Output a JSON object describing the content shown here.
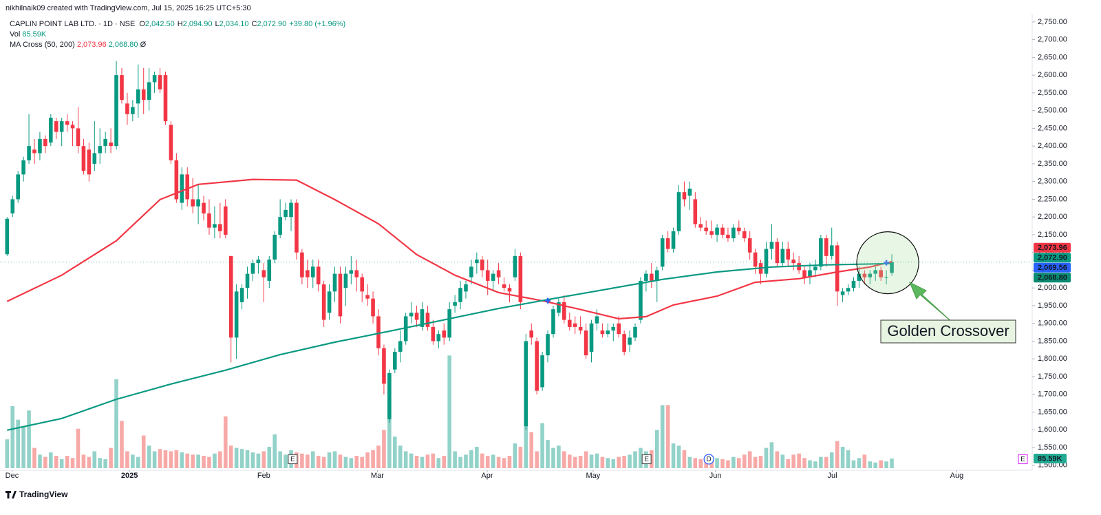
{
  "chart_data": {
    "type": "candlestick",
    "header": "nikhilnaik09 created with TradingView.com, Jul 15, 2025 16:25 UTC+5:30",
    "legend": {
      "symbol": "CAPLIN POINT LAB LTD. · 1D · NSE",
      "ohlc": [
        {
          "key": "O",
          "value": "2,042.50"
        },
        {
          "key": "H",
          "value": "2,094.90"
        },
        {
          "key": "L",
          "value": "2,034.10"
        },
        {
          "key": "C",
          "value": "2,072.90"
        }
      ],
      "change": "+39.80 (+1.96%)",
      "vol_label": "Vol",
      "vol_value": "85.59K",
      "ma_label": "MA Cross (50, 200)",
      "ma_values": [
        "2,073.96",
        "2,068.80"
      ],
      "ma_extra": "Ø"
    },
    "up_color": "#089981",
    "down_color": "#f23645",
    "up_volume_color": "#92d2c9",
    "down_volume_color": "#f7a9a7",
    "open": [
      2095,
      2210,
      2250,
      2320,
      2360,
      2390,
      2380,
      2420,
      2410,
      2470,
      2440,
      2470,
      2460,
      2450,
      2400,
      2390,
      2350,
      2380,
      2400,
      2410,
      2400,
      2600,
      2520,
      2490,
      2520,
      2560,
      2530,
      2580,
      2600,
      2600,
      2460,
      2360,
      2240,
      2320,
      2250,
      2230,
      2240,
      2210,
      2170,
      2180,
      2230,
      2090,
      1860,
      1960,
      2000,
      2040,
      2070,
      2050,
      2020,
      2080,
      2150,
      2200,
      2200,
      2240,
      2100,
      2050,
      2030,
      2060,
      2010,
      1930,
      1990,
      2040,
      2000,
      2040,
      2050,
      2030,
      1980,
      1970,
      1920,
      1830,
      1630,
      1770,
      1820,
      1850,
      1920,
      1930,
      1890,
      1930,
      1890,
      1850,
      1880,
      1860,
      1950,
      1960,
      1990,
      2030,
      2070,
      2080,
      2050,
      2020,
      2050,
      2010,
      2000,
      2030,
      2090,
      1610,
      1880,
      1850,
      1720,
      1810,
      1870,
      1930,
      1960,
      1910,
      1900,
      1890,
      1880,
      1820,
      1900,
      1880,
      1870,
      1880,
      1900,
      1870,
      1840,
      1860,
      1910,
      2020,
      2040,
      2020,
      2060,
      2140,
      2110,
      2160,
      2270,
      2260,
      2250,
      2180,
      2170,
      2160,
      2150,
      2170,
      2150,
      2140,
      2170,
      2160,
      2140,
      2100,
      2070,
      2040,
      2110,
      2130,
      2070,
      2110,
      2080,
      2070,
      2050,
      2030,
      2050,
      2060,
      2140,
      2090,
      2120,
      1980,
      1990,
      2000,
      2020,
      2040,
      2030,
      2040,
      2050,
      2030,
      2042.5
    ],
    "high": [
      2200,
      2260,
      2330,
      2370,
      2490,
      2420,
      2440,
      2430,
      2490,
      2480,
      2480,
      2490,
      2470,
      2510,
      2420,
      2410,
      2470,
      2450,
      2440,
      2450,
      2640,
      2620,
      2550,
      2530,
      2630,
      2620,
      2620,
      2610,
      2620,
      2610,
      2470,
      2380,
      2340,
      2340,
      2310,
      2290,
      2260,
      2250,
      2230,
      2240,
      2250,
      2090,
      2010,
      2010,
      2060,
      2080,
      2090,
      2070,
      2090,
      2160,
      2250,
      2240,
      2250,
      2250,
      2110,
      2080,
      2080,
      2080,
      2020,
      2010,
      2060,
      2060,
      2060,
      2090,
      2080,
      2040,
      2010,
      1990,
      1940,
      1840,
      1770,
      1830,
      1880,
      1930,
      1960,
      1950,
      1960,
      1950,
      1910,
      1880,
      1900,
      1960,
      1980,
      2020,
      2020,
      2080,
      2100,
      2090,
      2080,
      2050,
      2070,
      2030,
      2010,
      2110,
      2100,
      1870,
      1900,
      1860,
      1820,
      1880,
      1950,
      1970,
      1980,
      1930,
      1920,
      1920,
      1900,
      1910,
      1940,
      1900,
      1900,
      1900,
      1920,
      1880,
      1880,
      1900,
      2030,
      2050,
      2070,
      2060,
      2150,
      2160,
      2170,
      2290,
      2300,
      2300,
      2270,
      2200,
      2190,
      2190,
      2180,
      2180,
      2170,
      2180,
      2190,
      2170,
      2160,
      2110,
      2080,
      2130,
      2180,
      2140,
      2130,
      2130,
      2100,
      2090,
      2060,
      2070,
      2080,
      2150,
      2150,
      2170,
      2130,
      2000,
      2010,
      2030,
      2060,
      2050,
      2050,
      2060,
      2060,
      2050,
      2094.9
    ],
    "low": [
      2090,
      2200,
      2240,
      2300,
      2350,
      2350,
      2360,
      2380,
      2400,
      2420,
      2400,
      2440,
      2400,
      2380,
      2320,
      2300,
      2330,
      2350,
      2380,
      2380,
      2390,
      2520,
      2460,
      2470,
      2480,
      2490,
      2500,
      2550,
      2550,
      2460,
      2350,
      2240,
      2220,
      2230,
      2210,
      2180,
      2190,
      2150,
      2140,
      2140,
      2140,
      1790,
      1800,
      1940,
      1970,
      2020,
      2040,
      1960,
      2000,
      2070,
      2140,
      2190,
      2160,
      2080,
      2010,
      2000,
      2000,
      1990,
      1890,
      1910,
      1960,
      1900,
      1950,
      2010,
      1990,
      1960,
      1950,
      1900,
      1810,
      1700,
      1620,
      1760,
      1790,
      1840,
      1900,
      1890,
      1880,
      1880,
      1840,
      1830,
      1840,
      1850,
      1930,
      1940,
      1970,
      2010,
      2040,
      2030,
      1980,
      1990,
      2010,
      1990,
      1960,
      2020,
      1940,
      1600,
      1840,
      1700,
      1710,
      1790,
      1860,
      1920,
      1900,
      1880,
      1870,
      1870,
      1800,
      1790,
      1880,
      1860,
      1860,
      1850,
      1860,
      1810,
      1820,
      1850,
      1900,
      1990,
      2000,
      1960,
      2050,
      2100,
      2100,
      2150,
      2230,
      2220,
      2170,
      2160,
      2150,
      2140,
      2130,
      2140,
      2130,
      2130,
      2150,
      2130,
      2080,
      2040,
      2010,
      2030,
      2080,
      2060,
      2060,
      2060,
      2050,
      2040,
      2010,
      2010,
      2030,
      2050,
      2060,
      2080,
      1950,
      1960,
      1980,
      1990,
      2000,
      2010,
      2010,
      2020,
      2020,
      2010,
      2034.1
    ],
    "close": [
      2195,
      2250,
      2320,
      2360,
      2400,
      2380,
      2420,
      2400,
      2480,
      2440,
      2470,
      2460,
      2450,
      2400,
      2330,
      2320,
      2380,
      2400,
      2420,
      2400,
      2600,
      2530,
      2490,
      2510,
      2560,
      2530,
      2580,
      2600,
      2560,
      2470,
      2360,
      2250,
      2320,
      2250,
      2230,
      2250,
      2210,
      2170,
      2180,
      2160,
      2150,
      1860,
      1990,
      2000,
      2040,
      2070,
      2080,
      2030,
      2080,
      2150,
      2200,
      2220,
      2240,
      2100,
      2030,
      2030,
      2060,
      2010,
      1910,
      1990,
      2040,
      1920,
      2040,
      2050,
      2030,
      1990,
      1970,
      1920,
      1830,
      1730,
      1760,
      1820,
      1850,
      1920,
      1930,
      1910,
      1940,
      1890,
      1850,
      1870,
      1860,
      1940,
      1960,
      2000,
      2010,
      2060,
      2080,
      2050,
      2020,
      2040,
      2030,
      2000,
      1990,
      2090,
      1960,
      1850,
      1860,
      1710,
      1810,
      1870,
      1940,
      1960,
      1910,
      1890,
      1890,
      1880,
      1810,
      1900,
      1920,
      1870,
      1880,
      1890,
      1870,
      1820,
      1860,
      1890,
      2020,
      2040,
      2020,
      2050,
      2140,
      2110,
      2160,
      2270,
      2250,
      2280,
      2180,
      2170,
      2160,
      2150,
      2170,
      2150,
      2140,
      2170,
      2160,
      2140,
      2100,
      2060,
      2040,
      2110,
      2130,
      2070,
      2110,
      2080,
      2070,
      2050,
      2030,
      2050,
      2060,
      2140,
      2090,
      2120,
      1990,
      1990,
      2000,
      2020,
      2040,
      2030,
      2040,
      2050,
      2030,
      2030,
      2072.9
    ],
    "volume": [
      256,
      550,
      430,
      366,
      512,
      180,
      120,
      100,
      140,
      110,
      80,
      110,
      90,
      350,
      120,
      100,
      150,
      90,
      80,
      180,
      790,
      420,
      150,
      120,
      100,
      290,
      200,
      150,
      170,
      160,
      150,
      160,
      140,
      130,
      120,
      120,
      110,
      100,
      130,
      150,
      460,
      200,
      180,
      170,
      160,
      140,
      130,
      150,
      190,
      300,
      150,
      120,
      160,
      140,
      130,
      120,
      150,
      110,
      100,
      140,
      150,
      120,
      100,
      90,
      110,
      100,
      140,
      160,
      200,
      340,
      440,
      280,
      200,
      150,
      130,
      110,
      100,
      120,
      130,
      90,
      110,
      1000,
      150,
      100,
      120,
      160,
      190,
      130,
      110,
      120,
      100,
      90,
      110,
      220,
      190,
      410,
      320,
      150,
      400,
      250,
      180,
      200,
      150,
      120,
      100,
      110,
      150,
      120,
      130,
      100,
      90,
      80,
      100,
      110,
      120,
      150,
      180,
      150,
      160,
      340,
      560,
      560,
      220,
      200,
      160,
      100,
      90,
      80,
      70,
      100,
      90,
      80,
      70,
      100,
      90,
      120,
      150,
      100,
      110,
      180,
      230,
      150,
      120,
      80,
      120,
      130,
      90,
      70,
      60,
      100,
      100,
      140,
      240,
      190,
      160,
      70,
      90,
      120,
      60,
      50,
      70,
      60,
      85.59
    ],
    "volume_ylim": [
      0,
      1100
    ],
    "ma_series": [
      {
        "color": "#f23645",
        "x": [
          0,
          10,
          20,
          28,
          35,
          45,
          53,
          60,
          68,
          75,
          82,
          90,
          98,
          105,
          112,
          117,
          122,
          130,
          137,
          145,
          152,
          158,
          162
        ],
        "values": [
          1962,
          2036,
          2133,
          2249,
          2292,
          2306,
          2304,
          2249,
          2181,
          2094,
          2036,
          1987,
          1964,
          1939,
          1913,
          1919,
          1952,
          1977,
          2016,
          2026,
          2045,
          2059,
          2073.96
        ]
      },
      {
        "color": "#089981",
        "x": [
          0,
          10,
          20,
          30,
          40,
          50,
          60,
          70,
          80,
          90,
          100,
          110,
          120,
          130,
          140,
          150,
          162
        ],
        "values": [
          1599,
          1632,
          1686,
          1729,
          1768,
          1812,
          1847,
          1878,
          1910,
          1942,
          1970,
          1997,
          2024,
          2045,
          2059,
          2065,
          2068.8
        ]
      }
    ],
    "crossovers": [
      {
        "x": 99,
        "value": 1964,
        "color": "#2962ff"
      },
      {
        "x": 161,
        "value": 2071,
        "color": "#2962ff"
      }
    ],
    "price_labels": [
      {
        "value": 2073.96,
        "label": "2,073.96",
        "color": "#f23645"
      },
      {
        "value": 2072.9,
        "label": "2,072.90",
        "color": "#089981"
      },
      {
        "value": 2069.56,
        "label": "2,069.56",
        "color": "#2962ff"
      },
      {
        "value": 2068.8,
        "label": "2,068.80",
        "color": "#0b8a72"
      }
    ],
    "volume_label": {
      "value": 85.59,
      "label": "85.59K",
      "color": "#22ab94"
    },
    "events": [
      {
        "x": 52.3,
        "label": "E",
        "color": "#555555"
      },
      {
        "x": 117.1,
        "label": "E",
        "color": "#555555"
      },
      {
        "x": 128.5,
        "label": "D",
        "color": "#2962ff"
      },
      {
        "x": 186,
        "label": "E",
        "color": "#e040fb"
      }
    ],
    "annotation": "Golden Crossover",
    "xlim": [
      -1.3,
      187.7
    ],
    "xticks": [
      {
        "value": 0.9,
        "label": "Dec"
      },
      {
        "value": 22.4,
        "label": "2025"
      },
      {
        "value": 47,
        "label": "Feb"
      },
      {
        "value": 67.8,
        "label": "Mar"
      },
      {
        "value": 87.9,
        "label": "Apr"
      },
      {
        "value": 107.3,
        "label": "May"
      },
      {
        "value": 129.7,
        "label": "Jun"
      },
      {
        "value": 151.1,
        "label": "Jul"
      },
      {
        "value": 173.9,
        "label": "Aug"
      }
    ],
    "ylim": [
      1486,
      2773
    ],
    "yticks": [
      {
        "value": 1500,
        "label": "1,500.00"
      },
      {
        "value": 1550,
        "label": "1,550.00"
      },
      {
        "value": 1600,
        "label": "1,600.00"
      },
      {
        "value": 1650,
        "label": "1,650.00"
      },
      {
        "value": 1700,
        "label": "1,700.00"
      },
      {
        "value": 1750,
        "label": "1,750.00"
      },
      {
        "value": 1800,
        "label": "1,800.00"
      },
      {
        "value": 1850,
        "label": "1,850.00"
      },
      {
        "value": 1900,
        "label": "1,900.00"
      },
      {
        "value": 1950,
        "label": "1,950.00"
      },
      {
        "value": 2000,
        "label": "2,000.00"
      },
      {
        "value": 2050,
        "label": "2,050.00"
      },
      {
        "value": 2100,
        "label": "2,100.00"
      },
      {
        "value": 2150,
        "label": "2,150.00"
      },
      {
        "value": 2200,
        "label": "2,200.00"
      },
      {
        "value": 2250,
        "label": "2,250.00"
      },
      {
        "value": 2300,
        "label": "2,300.00"
      },
      {
        "value": 2350,
        "label": "2,350.00"
      },
      {
        "value": 2400,
        "label": "2,400.00"
      },
      {
        "value": 2450,
        "label": "2,450.00"
      },
      {
        "value": 2500,
        "label": "2,500.00"
      },
      {
        "value": 2550,
        "label": "2,550.00"
      },
      {
        "value": 2600,
        "label": "2,600.00"
      },
      {
        "value": 2650,
        "label": "2,650.00"
      },
      {
        "value": 2700,
        "label": "2,700.00"
      },
      {
        "value": 2750,
        "label": "2,750.00"
      }
    ],
    "footer": "TradingView"
  }
}
